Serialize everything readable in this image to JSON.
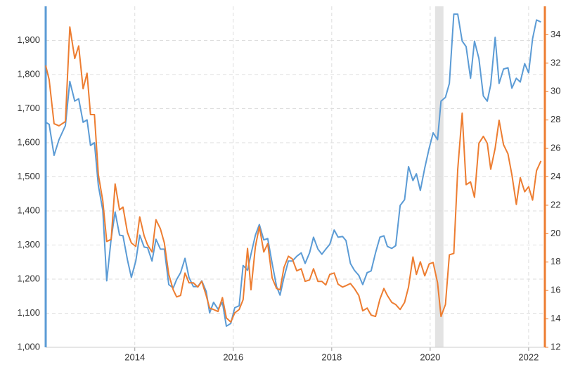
{
  "chart_data": {
    "type": "line",
    "x": [
      2012.19,
      2012.26,
      2012.36,
      2012.46,
      2012.59,
      2012.68,
      2012.78,
      2012.86,
      2012.95,
      2013.03,
      2013.1,
      2013.18,
      2013.26,
      2013.35,
      2013.43,
      2013.52,
      2013.6,
      2013.69,
      2013.76,
      2013.85,
      2013.93,
      2014.02,
      2014.1,
      2014.19,
      2014.26,
      2014.35,
      2014.43,
      2014.52,
      2014.6,
      2014.69,
      2014.78,
      2014.85,
      2014.93,
      2015.02,
      2015.1,
      2015.19,
      2015.28,
      2015.36,
      2015.45,
      2015.52,
      2015.6,
      2015.69,
      2015.78,
      2015.86,
      2015.95,
      2016.03,
      2016.12,
      2016.2,
      2016.29,
      2016.36,
      2016.45,
      2016.53,
      2016.62,
      2016.7,
      2016.79,
      2016.88,
      2016.95,
      2017.03,
      2017.12,
      2017.2,
      2017.29,
      2017.38,
      2017.46,
      2017.55,
      2017.63,
      2017.72,
      2017.8,
      2017.88,
      2017.96,
      2018.05,
      2018.13,
      2018.22,
      2018.29,
      2018.38,
      2018.46,
      2018.55,
      2018.63,
      2018.72,
      2018.8,
      2018.89,
      2018.98,
      2019.06,
      2019.13,
      2019.22,
      2019.3,
      2019.39,
      2019.48,
      2019.56,
      2019.65,
      2019.72,
      2019.8,
      2019.89,
      2019.98,
      2020.06,
      2020.15,
      2020.22,
      2020.31,
      2020.39,
      2020.48,
      2020.56,
      2020.65,
      2020.73,
      2020.82,
      2020.9,
      2020.99,
      2021.08,
      2021.16,
      2021.23,
      2021.32,
      2021.4,
      2021.49,
      2021.58,
      2021.66,
      2021.75,
      2021.83,
      2021.92,
      2022.0,
      2022.08,
      2022.16,
      2022.25
    ],
    "series": [
      {
        "color": "#5b9bd5",
        "values": [
          1660,
          1654,
          1563,
          1609,
          1650,
          1780,
          1722,
          1729,
          1660,
          1667,
          1592,
          1600,
          1474,
          1402,
          1195,
          1319,
          1397,
          1329,
          1327,
          1257,
          1205,
          1253,
          1329,
          1294,
          1292,
          1253,
          1317,
          1288,
          1288,
          1184,
          1174,
          1199,
          1219,
          1261,
          1205,
          1178,
          1178,
          1195,
          1164,
          1101,
          1132,
          1112,
          1132,
          1062,
          1070,
          1116,
          1122,
          1240,
          1226,
          1273,
          1329,
          1360,
          1315,
          1319,
          1246,
          1178,
          1153,
          1205,
          1253,
          1253,
          1267,
          1277,
          1246,
          1277,
          1323,
          1288,
          1273,
          1288,
          1302,
          1344,
          1323,
          1325,
          1313,
          1246,
          1226,
          1211,
          1184,
          1219,
          1224,
          1277,
          1323,
          1327,
          1296,
          1290,
          1298,
          1416,
          1433,
          1530,
          1489,
          1509,
          1460,
          1526,
          1584,
          1629,
          1609,
          1722,
          1733,
          1774,
          1977,
          1977,
          1898,
          1882,
          1789,
          1898,
          1847,
          1737,
          1722,
          1770,
          1909,
          1774,
          1816,
          1820,
          1760,
          1789,
          1778,
          1832,
          1805,
          1905,
          1960,
          1954
        ]
      },
      {
        "color": "#ed7d31",
        "axis": "y2",
        "values": [
          31.83,
          30.84,
          27.74,
          27.59,
          27.89,
          34.55,
          32.33,
          33.21,
          30.2,
          31.29,
          28.38,
          28.38,
          24.14,
          22.31,
          19.45,
          19.6,
          23.5,
          21.67,
          21.87,
          20.09,
          19.35,
          19.1,
          21.18,
          19.84,
          19.2,
          18.71,
          20.98,
          20.34,
          19.35,
          17.13,
          16.05,
          15.55,
          15.65,
          17.23,
          16.54,
          16.54,
          16.24,
          16.64,
          15.65,
          14.76,
          14.66,
          14.52,
          15.5,
          14.07,
          13.78,
          14.42,
          14.66,
          15.35,
          18.96,
          16.05,
          19.1,
          20.49,
          18.71,
          19.3,
          16.88,
          16.14,
          16.05,
          17.62,
          18.41,
          18.22,
          17.38,
          17.53,
          16.64,
          16.74,
          17.53,
          16.64,
          16.64,
          16.39,
          17.13,
          17.23,
          16.44,
          16.24,
          16.34,
          16.49,
          16.14,
          15.65,
          14.57,
          14.76,
          14.27,
          14.17,
          15.4,
          16.14,
          15.65,
          15.16,
          15.01,
          14.66,
          15.16,
          16.24,
          18.36,
          17.13,
          18.02,
          17.03,
          17.87,
          17.97,
          16.54,
          14.17,
          15.01,
          18.51,
          18.61,
          24.53,
          28.48,
          23.45,
          23.64,
          22.56,
          26.36,
          26.85,
          26.36,
          24.53,
          26.01,
          27.98,
          26.26,
          25.62,
          24.14,
          22.06,
          23.94,
          22.95,
          23.3,
          22.36,
          24.43,
          25.12
        ]
      }
    ],
    "xlim": [
      2012.19,
      2022.33
    ],
    "xticks": [
      2014,
      2016,
      2018,
      2020,
      2022
    ],
    "ylim": [
      1000,
      2000
    ],
    "yticks": [
      {
        "value": 1000,
        "label": "1,000"
      },
      {
        "value": 1100,
        "label": "1,100"
      },
      {
        "value": 1200,
        "label": "1,200"
      },
      {
        "value": 1300,
        "label": "1,300"
      },
      {
        "value": 1400,
        "label": "1,400"
      },
      {
        "value": 1500,
        "label": "1,500"
      },
      {
        "value": 1600,
        "label": "1,600"
      },
      {
        "value": 1700,
        "label": "1,700"
      },
      {
        "value": 1800,
        "label": "1,800"
      },
      {
        "value": 1900,
        "label": "1,900"
      }
    ],
    "y2lim": [
      12,
      36
    ],
    "y2ticks": [
      12,
      14,
      16,
      18,
      20,
      22,
      24,
      26,
      28,
      30,
      32,
      34
    ],
    "shaded_range": [
      2020.1,
      2020.27
    ],
    "grid": true
  }
}
